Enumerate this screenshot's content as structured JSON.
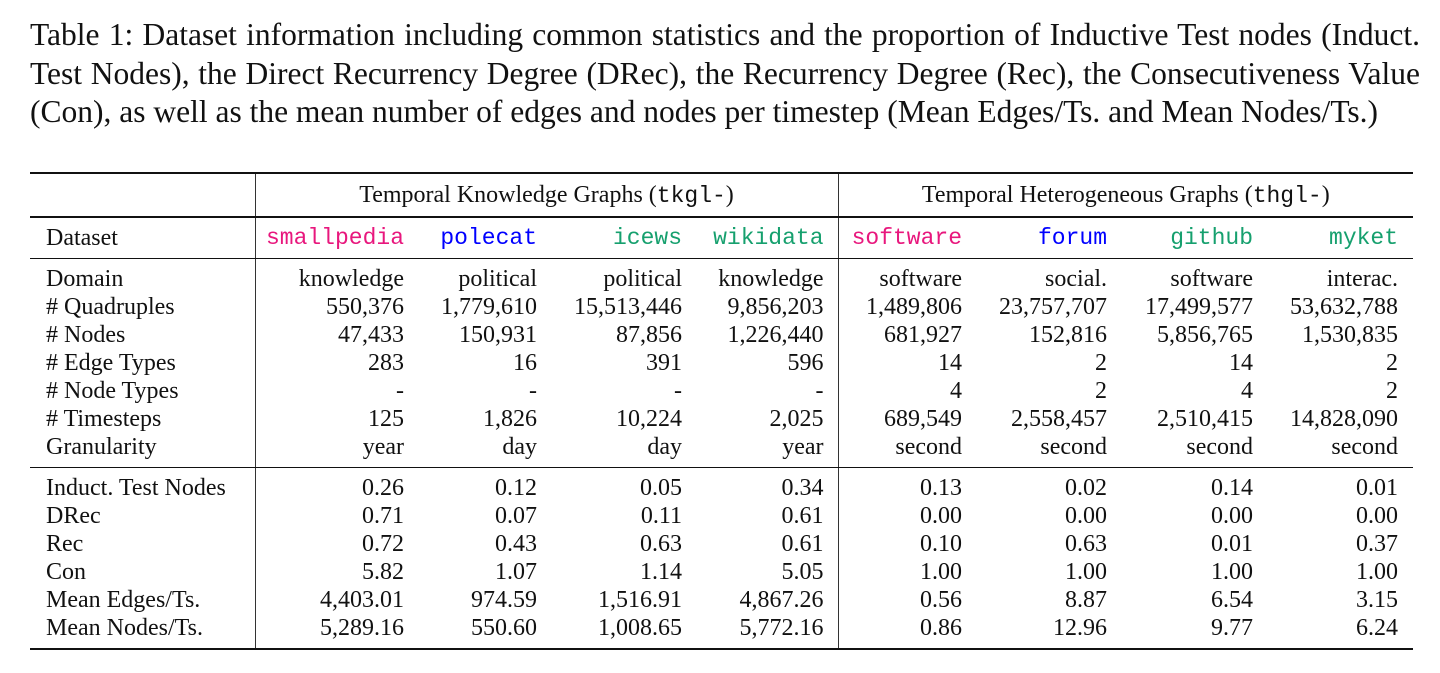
{
  "caption": "Table 1: Dataset information including common statistics and the proportion of Inductive Test nodes (Induct. Test Nodes), the Direct Recurrency Degree (DRec), the Recurrency Degree (Rec), the Consecutiveness Value (Con), as well as the mean number of edges and nodes per timestep (Mean Edges/Ts. and Mean Nodes/Ts.)",
  "groups": [
    {
      "label": "Temporal Knowledge Graphs (",
      "code": "tkgl-",
      "close": ")"
    },
    {
      "label": "Temporal Heterogeneous Graphs (",
      "code": "thgl-",
      "close": ")"
    }
  ],
  "header_label": "Dataset",
  "datasets": [
    {
      "name": "smallpedia",
      "color": "#e8177d"
    },
    {
      "name": "polecat",
      "color": "#0000ff"
    },
    {
      "name": "icews",
      "color": "#16a06e"
    },
    {
      "name": "wikidata",
      "color": "#16a06e"
    },
    {
      "name": "software",
      "color": "#e8177d"
    },
    {
      "name": "forum",
      "color": "#0000ff"
    },
    {
      "name": "github",
      "color": "#16a06e"
    },
    {
      "name": "myket",
      "color": "#16a06e"
    }
  ],
  "section1": [
    {
      "label": "Domain",
      "values": [
        "knowledge",
        "political",
        "political",
        "knowledge",
        "software",
        "social.",
        "software",
        "interac."
      ]
    },
    {
      "label": "# Quadruples",
      "values": [
        "550,376",
        "1,779,610",
        "15,513,446",
        "9,856,203",
        "1,489,806",
        "23,757,707",
        "17,499,577",
        "53,632,788"
      ]
    },
    {
      "label": "# Nodes",
      "values": [
        "47,433",
        "150,931",
        "87,856",
        "1,226,440",
        "681,927",
        "152,816",
        "5,856,765",
        "1,530,835"
      ]
    },
    {
      "label": "# Edge Types",
      "values": [
        "283",
        "16",
        "391",
        "596",
        "14",
        "2",
        "14",
        "2"
      ]
    },
    {
      "label": "# Node Types",
      "values": [
        "-",
        "-",
        "-",
        "-",
        "4",
        "2",
        "4",
        "2"
      ]
    },
    {
      "label": "# Timesteps",
      "values": [
        "125",
        "1,826",
        "10,224",
        "2,025",
        "689,549",
        "2,558,457",
        "2,510,415",
        "14,828,090"
      ]
    },
    {
      "label": "Granularity",
      "values": [
        "year",
        "day",
        "day",
        "year",
        "second",
        "second",
        "second",
        "second"
      ]
    }
  ],
  "section2": [
    {
      "label": "Induct. Test Nodes",
      "values": [
        "0.26",
        "0.12",
        "0.05",
        "0.34",
        "0.13",
        "0.02",
        "0.14",
        "0.01"
      ]
    },
    {
      "label": "DRec",
      "values": [
        "0.71",
        "0.07",
        "0.11",
        "0.61",
        "0.00",
        "0.00",
        "0.00",
        "0.00"
      ]
    },
    {
      "label": "Rec",
      "values": [
        "0.72",
        "0.43",
        "0.63",
        "0.61",
        "0.10",
        "0.63",
        "0.01",
        "0.37"
      ]
    },
    {
      "label": "Con",
      "values": [
        "5.82",
        "1.07",
        "1.14",
        "5.05",
        "1.00",
        "1.00",
        "1.00",
        "1.00"
      ]
    },
    {
      "label": "Mean Edges/Ts.",
      "values": [
        "4,403.01",
        "974.59",
        "1,516.91",
        "4,867.26",
        "0.56",
        "8.87",
        "6.54",
        "3.15"
      ]
    },
    {
      "label": "Mean Nodes/Ts.",
      "values": [
        "5,289.16",
        "550.60",
        "1,008.65",
        "5,772.16",
        "0.86",
        "12.96",
        "9.77",
        "6.24"
      ]
    }
  ]
}
